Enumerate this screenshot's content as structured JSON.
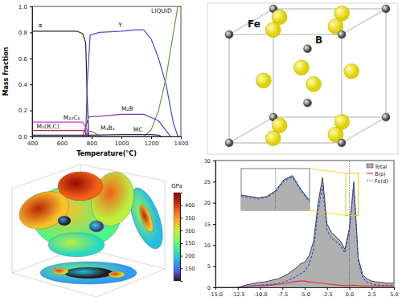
{
  "chart_data": [
    {
      "type": "line",
      "xlabel": "Temperature(°C)",
      "ylabel": "Mass fraction",
      "xlim": [
        400,
        1400
      ],
      "ylim": [
        0,
        1
      ],
      "xticks": [
        400,
        600,
        800,
        1000,
        1200,
        1400
      ],
      "yticks": [
        {
          "value": 0,
          "label": "0.0"
        },
        0.2,
        0.4,
        0.6,
        0.8,
        {
          "value": 1,
          "label": "1.0"
        }
      ],
      "series": [
        {
          "color": "#222222",
          "x": [
            400,
            500,
            600,
            700,
            740,
            760,
            770,
            780
          ],
          "values": [
            0.81,
            0.81,
            0.81,
            0.81,
            0.79,
            0.72,
            0.3,
            0
          ]
        },
        {
          "color": "#4a4ad8",
          "x": [
            760,
            770,
            790,
            850,
            1000,
            1100,
            1150,
            1200,
            1250,
            1300,
            1350,
            1380
          ],
          "values": [
            0,
            0.4,
            0.78,
            0.8,
            0.81,
            0.82,
            0.82,
            0.75,
            0.6,
            0.4,
            0.1,
            0
          ]
        },
        {
          "color": "#5aa040",
          "x": [
            1150,
            1200,
            1250,
            1300,
            1350,
            1380,
            1400
          ],
          "values": [
            0,
            0.05,
            0.2,
            0.45,
            0.8,
            1,
            1
          ]
        },
        {
          "color": "#c040c0",
          "x": [
            400,
            500,
            600,
            700,
            740,
            770,
            780
          ],
          "values": [
            0.11,
            0.11,
            0.11,
            0.11,
            0.11,
            0.05,
            0
          ]
        },
        {
          "color": "#b03040",
          "x": [
            400,
            500,
            600,
            700,
            750,
            780
          ],
          "values": [
            0.045,
            0.045,
            0.045,
            0.045,
            0.045,
            0
          ]
        },
        {
          "color": "#7a3aa8",
          "x": [
            740,
            780,
            900,
            1000,
            1150,
            1250,
            1330
          ],
          "values": [
            0,
            0.15,
            0.16,
            0.17,
            0.17,
            0.12,
            0
          ]
        },
        {
          "color": "#9a6a9a",
          "x": [
            760,
            780,
            800,
            830,
            860
          ],
          "values": [
            0,
            0.04,
            0.04,
            0.02,
            0
          ]
        },
        {
          "color": "#303060",
          "x": [
            400,
            600,
            800,
            1000,
            1200,
            1250,
            1270
          ],
          "values": [
            0.01,
            0.01,
            0.01,
            0.015,
            0.015,
            0.01,
            0
          ]
        }
      ],
      "annotations": [
        {
          "text": "α",
          "x": 440,
          "y": 0.84
        },
        {
          "text": "γ",
          "x": 980,
          "y": 0.85
        },
        {
          "text": "LIQUID",
          "x": 1200,
          "y": 0.95
        },
        {
          "text": "M₂₃C₆",
          "x": 610,
          "y": 0.13
        },
        {
          "text": "M₃(B,C)",
          "x": 430,
          "y": 0.06
        },
        {
          "text": "M₂B",
          "x": 1000,
          "y": 0.2
        },
        {
          "text": "M₃B₂",
          "x": 860,
          "y": 0.05
        },
        {
          "text": "MC",
          "x": 1080,
          "y": 0.035
        }
      ]
    },
    {
      "type": "line",
      "xlim": [
        -15,
        5
      ],
      "ylim": [
        0,
        30
      ],
      "xticks": [
        {
          "value": -15,
          "label": "-15.0"
        },
        -12.5,
        {
          "value": -10,
          "label": "-10.0"
        },
        -7.5,
        {
          "value": -5,
          "label": "-5.0"
        },
        -2.5,
        {
          "value": 0,
          "label": "0.0"
        },
        2.5,
        {
          "value": 5,
          "label": "5.0"
        }
      ],
      "yticks": [
        0,
        5,
        10,
        15,
        20,
        25,
        30
      ],
      "legend": "upper right",
      "vlines": [
        0
      ],
      "zoom_box": {
        "x": [
          -0.4,
          1.0
        ],
        "y": [
          17,
          27
        ]
      },
      "x": [
        -12.5,
        -12,
        -11.5,
        -11,
        -10.5,
        -10,
        -9.5,
        -9,
        -8.5,
        -8,
        -7.5,
        -7,
        -6.5,
        -6,
        -5.5,
        -5,
        -4.5,
        -4,
        -3.5,
        -3,
        -2.5,
        -2,
        -1.5,
        -1,
        -0.5,
        0,
        0.5,
        1,
        1.5,
        2,
        2.5,
        3,
        3.5,
        4,
        4.5,
        5
      ],
      "series": [
        {
          "name": "Total",
          "type": "area",
          "color": "#b0b0b0",
          "values": [
            0,
            0.3,
            0.6,
            0.8,
            1,
            1.2,
            1.3,
            1.5,
            1.8,
            2,
            2.5,
            3,
            3.8,
            4.5,
            5.5,
            6,
            7.5,
            11,
            20,
            26,
            15,
            13,
            12,
            11,
            9,
            14,
            25,
            7,
            3,
            2,
            1.5,
            1.3,
            1.2,
            1,
            1,
            1
          ]
        },
        {
          "name": "B(p)",
          "color": "#e03030",
          "values": [
            0,
            0.1,
            0.2,
            0.3,
            0.4,
            0.4,
            0.4,
            0.5,
            0.6,
            0.7,
            0.8,
            1,
            1.2,
            1.4,
            1.5,
            1.5,
            1.3,
            1.2,
            1,
            1,
            0.8,
            0.7,
            0.6,
            0.5,
            0.4,
            0.4,
            0.5,
            0.4,
            0.3,
            0.3,
            0.3,
            0.3,
            0.3,
            0.3,
            0.3,
            0.3
          ]
        },
        {
          "name": "Fe(d)",
          "color": "#3050e0",
          "line_style": "dashed",
          "values": [
            0,
            0.1,
            0.2,
            0.3,
            0.4,
            0.5,
            0.6,
            0.7,
            0.8,
            0.9,
            1.2,
            1.5,
            2,
            2.5,
            3.2,
            3.8,
            5.5,
            9,
            18,
            24,
            13.5,
            11.5,
            10.8,
            10,
            8.2,
            13.2,
            24,
            6,
            2.2,
            1.2,
            0.8,
            0.6,
            0.5,
            0.4,
            0.4,
            0.4
          ]
        }
      ]
    },
    {
      "type": "line",
      "xlim": [
        -1,
        1
      ],
      "ylim": [
        0,
        30
      ],
      "tick_labels": false,
      "vlines": [
        0
      ],
      "x": [
        -1,
        -0.75,
        -0.5,
        -0.25,
        0,
        0.25,
        0.5,
        0.75,
        1
      ],
      "series": [
        {
          "type": "area",
          "color": "#b0b0b0",
          "values": [
            11,
            10,
            9,
            10,
            14,
            22,
            25,
            15,
            7
          ]
        },
        {
          "color": "#3050e0",
          "line_style": "dashed",
          "values": [
            10,
            9.2,
            8.2,
            9.2,
            13.2,
            21,
            24,
            14,
            6
          ]
        }
      ]
    }
  ],
  "structure": {
    "labels": [
      "Fe",
      "B"
    ]
  },
  "surface": {
    "colorbar_label": "GPa",
    "colorbar_range": [
      100,
      450
    ],
    "colorbar_ticks": [
      150,
      200,
      250,
      300,
      350,
      400
    ]
  }
}
